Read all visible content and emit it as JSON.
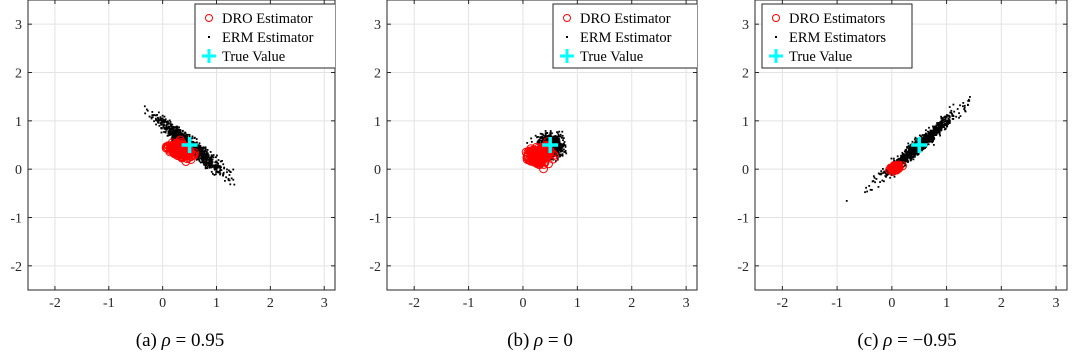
{
  "chart_data": [
    {
      "type": "scatter",
      "caption": "(a) ρ = 0.95",
      "caption_label": "(a)",
      "caption_var": "ρ",
      "caption_rest": " = 0.95",
      "rho": 0.95,
      "xlim": [
        -2.5,
        3.2
      ],
      "ylim": [
        -2.5,
        3.5
      ],
      "xticks": [
        -2,
        -1,
        0,
        1,
        2,
        3
      ],
      "yticks": [
        -2,
        -1,
        0,
        1,
        2,
        3
      ],
      "xtick_labels": [
        "-2",
        "-1",
        "0",
        "1",
        "2",
        "3"
      ],
      "ytick_labels": [
        "-2",
        "-1",
        "0",
        "1",
        "2",
        "3"
      ],
      "grid": true,
      "legend_position": "top-right",
      "true_value": {
        "name": "True Value",
        "x": 0.5,
        "y": 0.5
      },
      "series": [
        {
          "name": "DRO Estimator",
          "marker": "circle",
          "color": "#ff0000",
          "count": 150,
          "mean": [
            0.33,
            0.38
          ],
          "sd": [
            0.1,
            0.08
          ],
          "corr": -0.3
        },
        {
          "name": "ERM Estimator",
          "marker": "dot",
          "color": "#000000",
          "count": 1000,
          "mean": [
            0.5,
            0.5
          ],
          "sd": [
            0.3,
            0.28
          ],
          "corr": -0.95
        }
      ]
    },
    {
      "type": "scatter",
      "caption": "(b) ρ = 0",
      "caption_label": "(b)",
      "caption_var": "ρ",
      "caption_rest": " = 0",
      "rho": 0,
      "xlim": [
        -2.5,
        3.2
      ],
      "ylim": [
        -2.5,
        3.5
      ],
      "xticks": [
        -2,
        -1,
        0,
        1,
        2,
        3
      ],
      "yticks": [
        -2,
        -1,
        0,
        1,
        2,
        3
      ],
      "xtick_labels": [
        "-2",
        "-1",
        "0",
        "1",
        "2",
        "3"
      ],
      "ytick_labels": [
        "-2",
        "-1",
        "0",
        "1",
        "2",
        "3"
      ],
      "grid": true,
      "legend_position": "top-right",
      "true_value": {
        "name": "True Value",
        "x": 0.5,
        "y": 0.5
      },
      "series": [
        {
          "name": "DRO Estimator",
          "marker": "circle",
          "color": "#ff0000",
          "count": 160,
          "mean": [
            0.3,
            0.28
          ],
          "sd": [
            0.1,
            0.09
          ],
          "corr": 0.1
        },
        {
          "name": "ERM Estimator",
          "marker": "dot",
          "color": "#000000",
          "count": 1000,
          "mean": [
            0.5,
            0.48
          ],
          "sd": [
            0.11,
            0.11
          ],
          "corr": 0.0
        }
      ]
    },
    {
      "type": "scatter",
      "caption": "(c) ρ = −0.95",
      "caption_label": "(c)",
      "caption_var": "ρ",
      "caption_rest": " = −0.95",
      "rho": -0.95,
      "xlim": [
        -2.5,
        3.2
      ],
      "ylim": [
        -2.5,
        3.5
      ],
      "xticks": [
        -2,
        -1,
        0,
        1,
        2,
        3
      ],
      "yticks": [
        -2,
        -1,
        0,
        1,
        2,
        3
      ],
      "xtick_labels": [
        "-2",
        "-1",
        "0",
        "1",
        "2",
        "3"
      ],
      "ytick_labels": [
        "-2",
        "-1",
        "0",
        "1",
        "2",
        "3"
      ],
      "grid": true,
      "legend_position": "top-right",
      "true_value": {
        "name": "True Value",
        "x": 0.5,
        "y": 0.5
      },
      "series": [
        {
          "name": "DRO Estimators",
          "marker": "circle",
          "color": "#ff0000",
          "count": 40,
          "mean": [
            0.06,
            0.02
          ],
          "sd": [
            0.04,
            0.04
          ],
          "corr": 0.5
        },
        {
          "name": "ERM Estimators",
          "marker": "dot",
          "color": "#000000",
          "count": 1000,
          "mean": [
            0.5,
            0.5
          ],
          "sd": [
            0.32,
            0.32
          ],
          "corr": 0.97
        }
      ]
    }
  ],
  "colors": {
    "dro": "#ff0000",
    "erm": "#000000",
    "true_value": "#00ffff",
    "grid": "#e3e3e3",
    "axis": "#262626"
  }
}
